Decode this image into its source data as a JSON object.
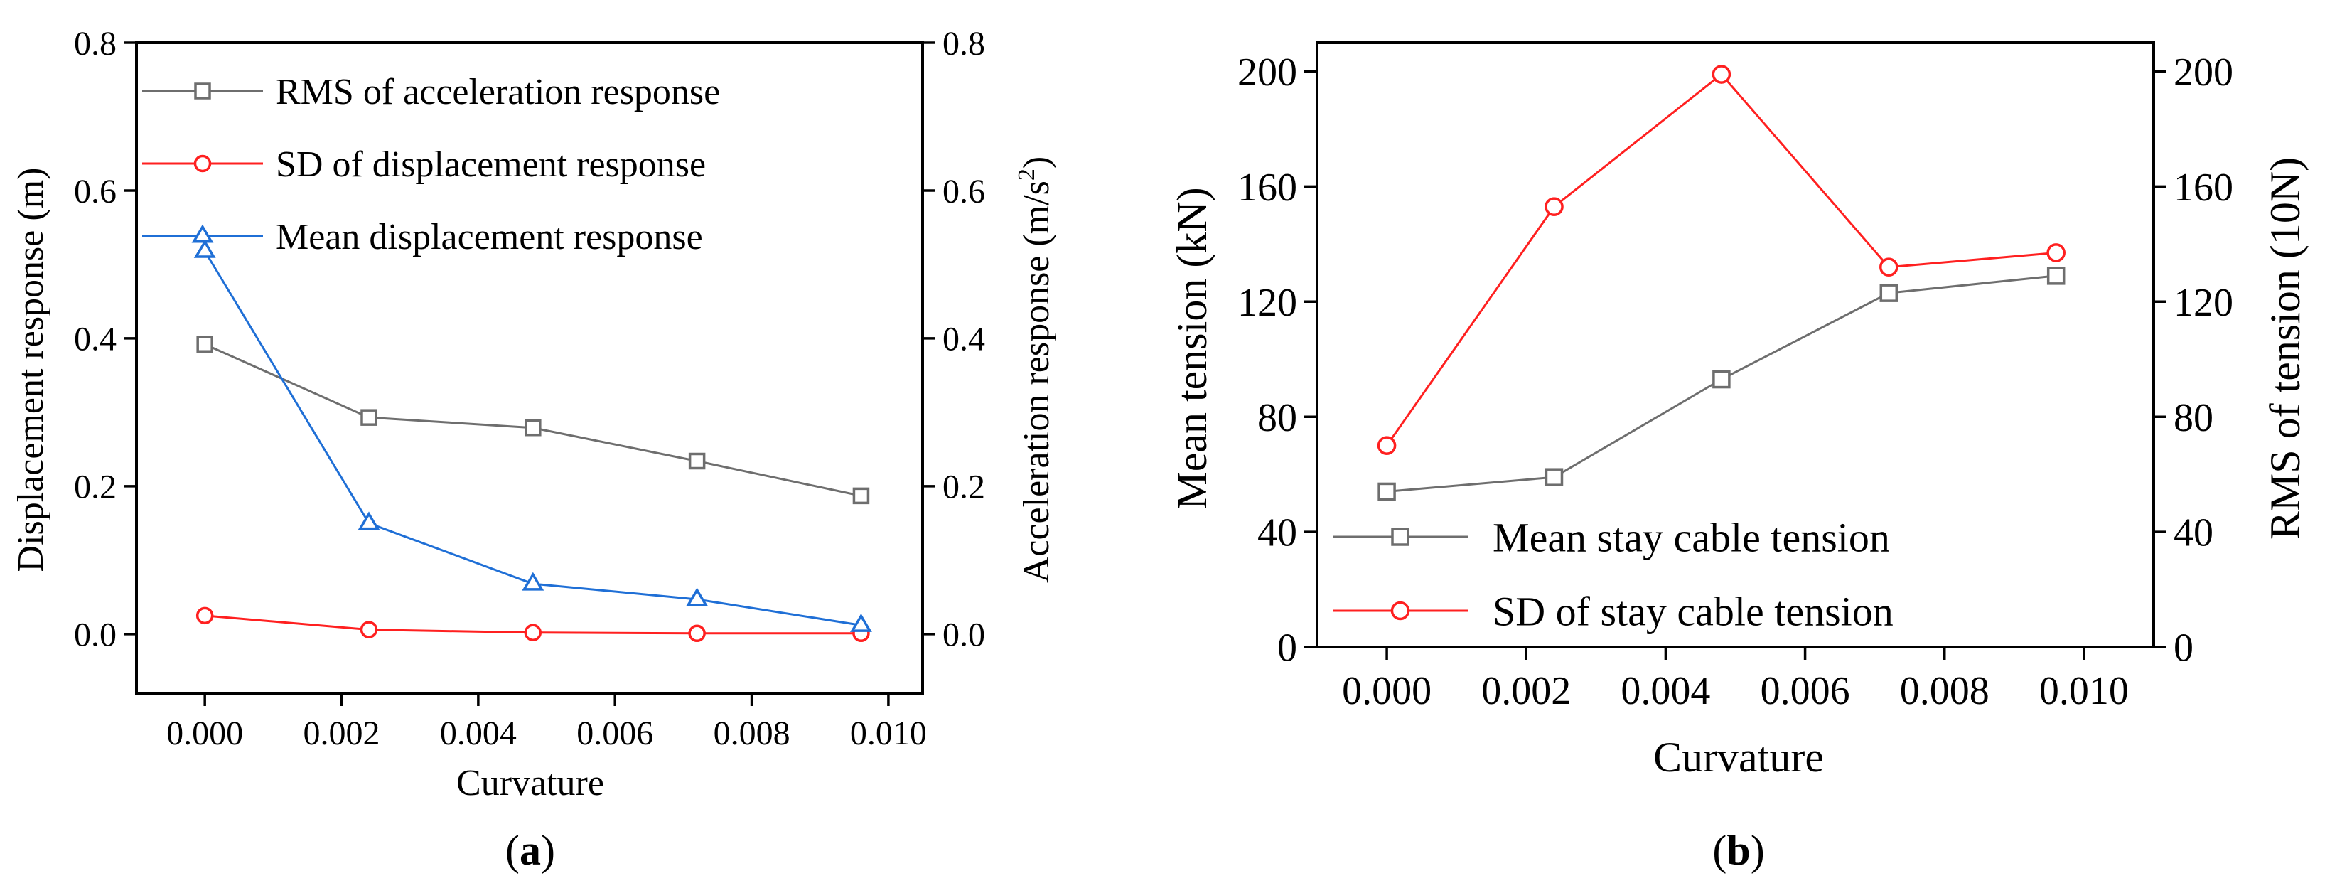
{
  "colors": {
    "rms": "#6e6e6e",
    "sd": "#ff2020",
    "mean": "#1f6fd6",
    "axis": "#000000"
  },
  "chart_data": [
    {
      "panel_label": "a",
      "type": "line",
      "xlabel": "Curvature",
      "ylabel_left": "Displacement response (m)",
      "ylabel_right_prefix": "Acceleration response (m/s",
      "ylabel_right_sup": "2",
      "ylabel_right_suffix": ")",
      "xlim": [
        -0.001,
        0.0105
      ],
      "ylim_left": [
        -0.08,
        0.8
      ],
      "ylim_right": [
        -0.08,
        0.8
      ],
      "x_ticks": [
        "0.000",
        "0.002",
        "0.004",
        "0.006",
        "0.008",
        "0.010"
      ],
      "y_ticks_left": [
        "0.0",
        "0.2",
        "0.4",
        "0.6",
        "0.8"
      ],
      "y_ticks_right": [
        "0.0",
        "0.2",
        "0.4",
        "0.6",
        "0.8"
      ],
      "legend_position": "top-right",
      "series": [
        {
          "name": "RMS of acceleration response",
          "axis": "right",
          "marker": "square",
          "color_key": "rms",
          "x": [
            0.0,
            0.0024,
            0.0048,
            0.0072,
            0.0096
          ],
          "values": [
            0.392,
            0.293,
            0.279,
            0.234,
            0.187
          ]
        },
        {
          "name": "SD of displacement response",
          "axis": "left",
          "marker": "circle",
          "color_key": "sd",
          "x": [
            0.0,
            0.0024,
            0.0048,
            0.0072,
            0.0096
          ],
          "values": [
            0.025,
            0.006,
            0.002,
            0.001,
            0.001
          ]
        },
        {
          "name": "Mean displacement response",
          "axis": "left",
          "marker": "triangle",
          "color_key": "mean",
          "x": [
            0.0,
            0.0024,
            0.0048,
            0.0072,
            0.0096
          ],
          "values": [
            0.518,
            0.15,
            0.068,
            0.047,
            0.012
          ]
        }
      ]
    },
    {
      "panel_label": "b",
      "type": "line",
      "xlabel": "Curvature",
      "ylabel_left": "Mean  tension (kN)",
      "ylabel_right": "RMS of  tension (10N)",
      "xlim": [
        -0.001,
        0.011
      ],
      "ylim_left": [
        0,
        210
      ],
      "ylim_right": [
        0,
        210
      ],
      "x_ticks": [
        "0.000",
        "0.002",
        "0.004",
        "0.006",
        "0.008",
        "0.010"
      ],
      "y_ticks_left": [
        "0",
        "40",
        "80",
        "120",
        "160",
        "200"
      ],
      "y_ticks_right": [
        "0",
        "40",
        "80",
        "120",
        "160",
        "200"
      ],
      "legend_position": "bottom-left",
      "series": [
        {
          "name": "Mean stay cable tension",
          "axis": "left",
          "marker": "square",
          "color_key": "rms",
          "x": [
            0.0,
            0.0024,
            0.0048,
            0.0072,
            0.0096
          ],
          "values": [
            54,
            59,
            93,
            123,
            129
          ]
        },
        {
          "name": "SD of stay cable tension",
          "axis": "right",
          "marker": "circle",
          "color_key": "sd",
          "x": [
            0.0,
            0.0024,
            0.0048,
            0.0072,
            0.0096
          ],
          "values": [
            70,
            153,
            199,
            132,
            137
          ]
        }
      ]
    }
  ]
}
